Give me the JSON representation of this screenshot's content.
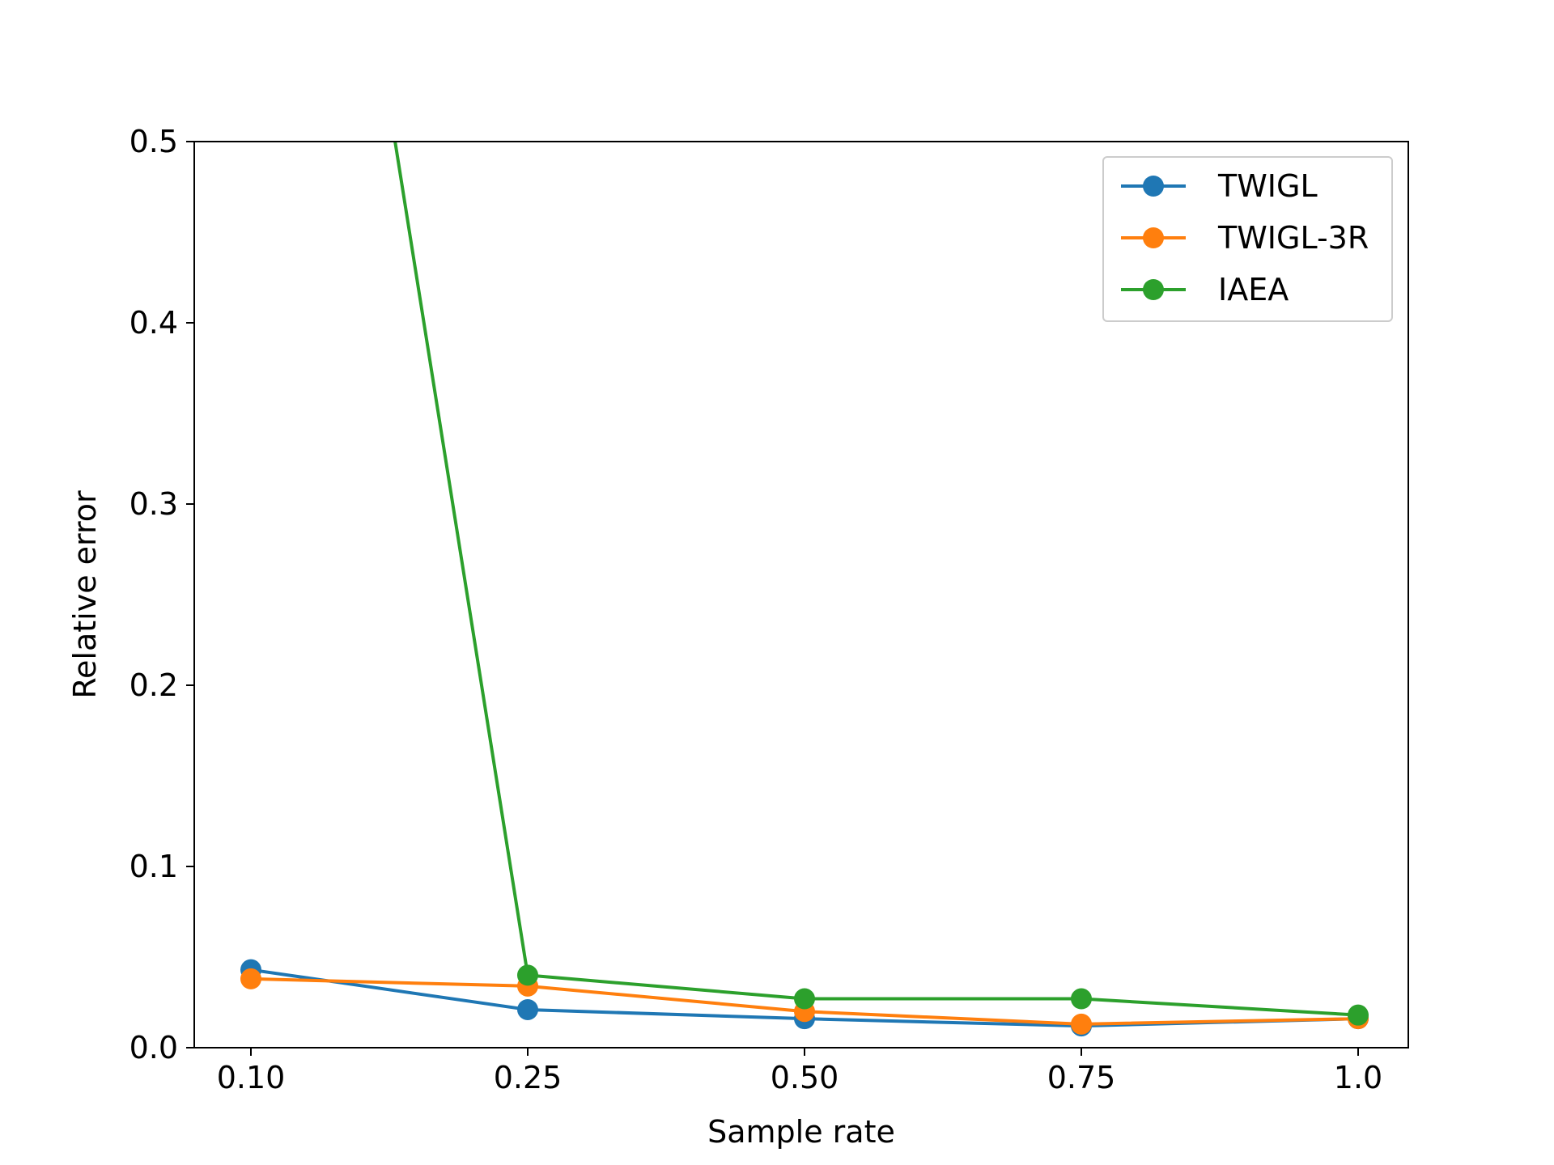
{
  "chart_data": {
    "type": "line",
    "title": "",
    "xlabel": "Sample rate",
    "ylabel": "Relative error",
    "categories": [
      "0.10",
      "0.25",
      "0.50",
      "0.75",
      "1.0"
    ],
    "yticks": [
      "0.0",
      "0.1",
      "0.2",
      "0.3",
      "0.4",
      "0.5"
    ],
    "ylim": [
      0,
      0.5
    ],
    "grid": false,
    "legend_position": "top-right",
    "series": [
      {
        "name": "TWIGL",
        "color": "#1f77b4",
        "values": [
          0.043,
          0.021,
          0.016,
          0.012,
          0.016
        ]
      },
      {
        "name": "TWIGL-3R",
        "color": "#ff7f0e",
        "values": [
          0.038,
          0.034,
          0.02,
          0.013,
          0.016
        ]
      },
      {
        "name": "IAEA",
        "color": "#2ca02c",
        "values": [
          1.0,
          0.04,
          0.027,
          0.027,
          0.018
        ]
      }
    ]
  }
}
